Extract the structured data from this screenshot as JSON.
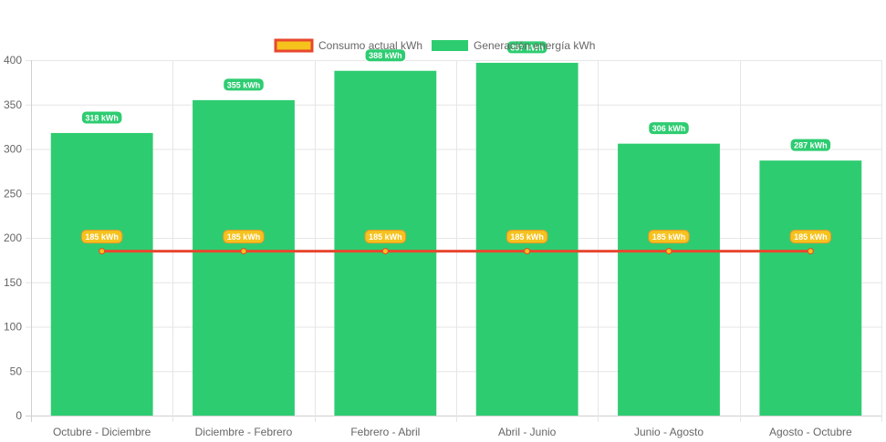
{
  "chart_data": {
    "type": "bar",
    "categories": [
      "Octubre - Diciembre",
      "Diciembre - Febrero",
      "Febrero - Abril",
      "Abril - Junio",
      "Junio - Agosto",
      "Agosto - Octubre"
    ],
    "series": [
      {
        "name": "Consumo actual kWh",
        "type": "line",
        "values": [
          185,
          185,
          185,
          185,
          185,
          185
        ],
        "color": "#e8472f",
        "fill_color": "#f6c21c",
        "data_labels": [
          "185 kWh",
          "185 kWh",
          "185 kWh",
          "185 kWh",
          "185 kWh",
          "185 kWh"
        ]
      },
      {
        "name": "Generación energía kWh",
        "type": "bar",
        "values": [
          318,
          355,
          388,
          397,
          306,
          287
        ],
        "color": "#2ecc71",
        "data_labels": [
          "318 kWh",
          "355 kWh",
          "388 kWh",
          "397 kWh",
          "306 kWh",
          "287 kWh"
        ]
      }
    ],
    "ylim": [
      0,
      400
    ],
    "yticks": [
      "0",
      "50",
      "100",
      "150",
      "200",
      "250",
      "300",
      "350",
      "400"
    ],
    "grid": true,
    "legend_position": "top-center"
  }
}
